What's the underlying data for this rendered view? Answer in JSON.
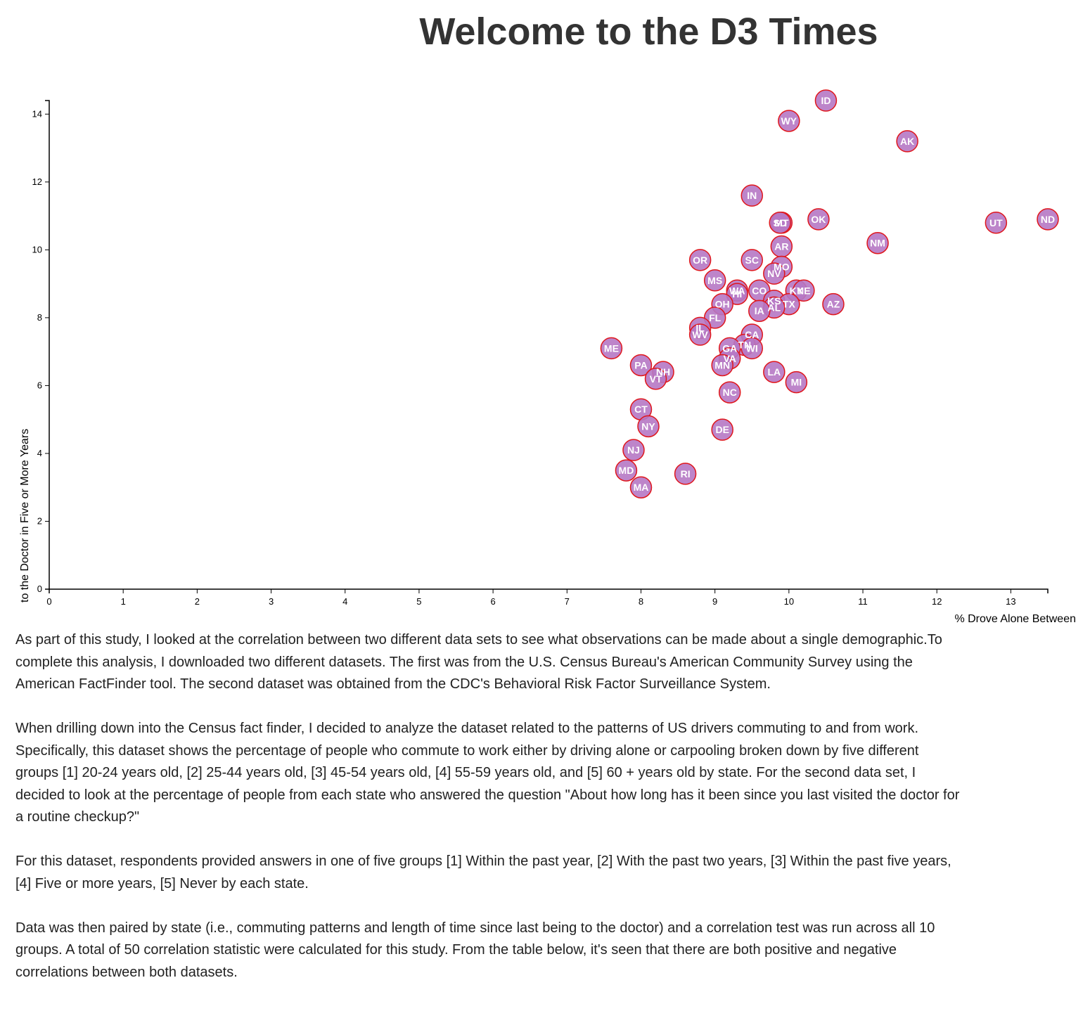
{
  "header": {
    "title": "Welcome to the D3 Times"
  },
  "article": {
    "paragraphs": [
      "As part of this study, I looked at the correlation between two different data sets to see what observations can be made about a single demographic.To complete this analysis, I downloaded two different datasets. The first was from the U.S. Census Bureau's American Community Survey using the American FactFinder tool. The second dataset was obtained from the CDC's Behavioral Risk Factor Surveillance System.",
      "When drilling down into the Census fact finder, I decided to analyze the dataset related to the patterns of US drivers commuting to and from work. Specifically, this dataset shows the percentage of people who commute to work either by driving alone or carpooling broken down by five different groups [1] 20-24 years old, [2] 25-44 years old, [3] 45-54 years old, [4] 55-59 years old, and [5] 60 + years old by state. For the second data set, I decided to look at the percentage of people from each state who answered the question \"About how long has it been since you last visited the doctor for a routine checkup?\"",
      "For this dataset, respondents provided answers in one of five groups [1] Within the past year, [2] With the past two years, [3] Within the past five years, [4] Five or more years, [5] Never by each state.",
      "Data was then paired by state (i.e., commuting patterns and length of time since last being to the doctor) and a correlation test was run across all 10 groups. A total of 50 correlation statistic were calculated for this study. From the table below, it's seen that there are both positive and negative correlations between both datasets."
    ]
  },
  "chart_data": {
    "type": "scatter",
    "title": "",
    "xlabel": "% Drove Alone Between",
    "ylabel": "to the Doctor in Five or More Years",
    "xlim": [
      0,
      13.5
    ],
    "ylim": [
      0,
      14.4
    ],
    "x_ticks": [
      0,
      1,
      2,
      3,
      4,
      5,
      6,
      7,
      8,
      9,
      10,
      11,
      12,
      13
    ],
    "y_ticks": [
      0,
      2,
      4,
      6,
      8,
      10,
      12,
      14
    ],
    "grid": false,
    "marker_color": "#b678c4",
    "marker_stroke": "#e0161b",
    "points": [
      {
        "label": "ID",
        "x": 10.5,
        "y": 14.4
      },
      {
        "label": "WY",
        "x": 10.0,
        "y": 13.8
      },
      {
        "label": "AK",
        "x": 11.6,
        "y": 13.2
      },
      {
        "label": "IN",
        "x": 9.5,
        "y": 11.6
      },
      {
        "label": "OK",
        "x": 10.4,
        "y": 10.9
      },
      {
        "label": "ND",
        "x": 13.5,
        "y": 10.9
      },
      {
        "label": "UT",
        "x": 12.8,
        "y": 10.8
      },
      {
        "label": "MT",
        "x": 9.9,
        "y": 10.8
      },
      {
        "label": "SD",
        "x": 9.88,
        "y": 10.8
      },
      {
        "label": "NM",
        "x": 11.2,
        "y": 10.2
      },
      {
        "label": "AR",
        "x": 9.9,
        "y": 10.1
      },
      {
        "label": "OR",
        "x": 8.8,
        "y": 9.7
      },
      {
        "label": "SC",
        "x": 9.5,
        "y": 9.7
      },
      {
        "label": "MO",
        "x": 9.9,
        "y": 9.5
      },
      {
        "label": "NV",
        "x": 9.8,
        "y": 9.3
      },
      {
        "label": "MS",
        "x": 9.0,
        "y": 9.1
      },
      {
        "label": "WA",
        "x": 9.3,
        "y": 8.8
      },
      {
        "label": "HI",
        "x": 9.3,
        "y": 8.7
      },
      {
        "label": "CO",
        "x": 9.6,
        "y": 8.8
      },
      {
        "label": "KY",
        "x": 10.1,
        "y": 8.8
      },
      {
        "label": "NE",
        "x": 10.2,
        "y": 8.8
      },
      {
        "label": "KS",
        "x": 9.8,
        "y": 8.5
      },
      {
        "label": "TX",
        "x": 10.0,
        "y": 8.4
      },
      {
        "label": "AL",
        "x": 9.8,
        "y": 8.3
      },
      {
        "label": "AZ",
        "x": 10.6,
        "y": 8.4
      },
      {
        "label": "OH",
        "x": 9.1,
        "y": 8.4
      },
      {
        "label": "IA",
        "x": 9.6,
        "y": 8.2
      },
      {
        "label": "FL",
        "x": 9.0,
        "y": 8.0
      },
      {
        "label": "IL",
        "x": 8.8,
        "y": 7.7
      },
      {
        "label": "WV",
        "x": 8.8,
        "y": 7.5
      },
      {
        "label": "CA",
        "x": 9.5,
        "y": 7.5
      },
      {
        "label": "ME",
        "x": 7.6,
        "y": 7.1
      },
      {
        "label": "TN",
        "x": 9.4,
        "y": 7.2
      },
      {
        "label": "GA",
        "x": 9.2,
        "y": 7.1
      },
      {
        "label": "WI",
        "x": 9.5,
        "y": 7.1
      },
      {
        "label": "VA",
        "x": 9.2,
        "y": 6.8
      },
      {
        "label": "MN",
        "x": 9.1,
        "y": 6.6
      },
      {
        "label": "PA",
        "x": 8.0,
        "y": 6.6
      },
      {
        "label": "NH",
        "x": 8.3,
        "y": 6.4
      },
      {
        "label": "VT",
        "x": 8.2,
        "y": 6.2
      },
      {
        "label": "LA",
        "x": 9.8,
        "y": 6.4
      },
      {
        "label": "MI",
        "x": 10.1,
        "y": 6.1
      },
      {
        "label": "NC",
        "x": 9.2,
        "y": 5.8
      },
      {
        "label": "CT",
        "x": 8.0,
        "y": 5.3
      },
      {
        "label": "NY",
        "x": 8.1,
        "y": 4.8
      },
      {
        "label": "DE",
        "x": 9.1,
        "y": 4.7
      },
      {
        "label": "NJ",
        "x": 7.9,
        "y": 4.1
      },
      {
        "label": "MD",
        "x": 7.8,
        "y": 3.5
      },
      {
        "label": "RI",
        "x": 8.6,
        "y": 3.4
      },
      {
        "label": "MA",
        "x": 8.0,
        "y": 3.0
      }
    ]
  }
}
